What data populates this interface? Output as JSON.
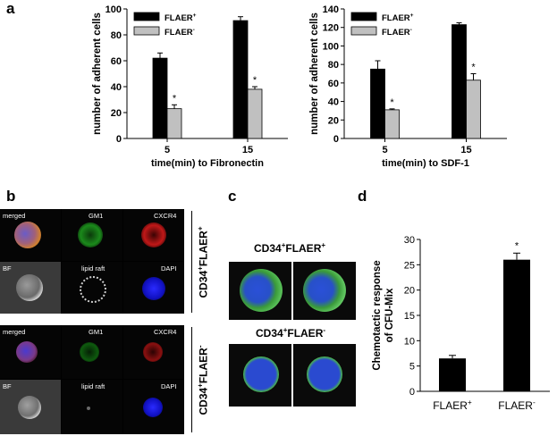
{
  "panels": {
    "a": "a",
    "b": "b",
    "c": "c",
    "d": "d"
  },
  "chart_data": [
    {
      "type": "bar",
      "categories": [
        "5",
        "15"
      ],
      "series": [
        {
          "name": "FLAER+",
          "values": [
            62,
            91
          ],
          "errors": [
            4,
            3
          ],
          "color": "#000000"
        },
        {
          "name": "FLAER-",
          "values": [
            23,
            38
          ],
          "errors": [
            3,
            2
          ],
          "color": "#c0c0c0"
        }
      ],
      "annotations": [
        "*",
        "*"
      ],
      "legend_labels": [
        "FLAER",
        "FLAER"
      ],
      "legend_sups": [
        "+",
        "-"
      ],
      "xlabel": "time(min) to Fibronectin",
      "ylabel": "number of adherent cells",
      "ylim": [
        0,
        100
      ],
      "yticks": [
        "0",
        "20",
        "40",
        "60",
        "80",
        "100"
      ],
      "legend": "top-left"
    },
    {
      "type": "bar",
      "categories": [
        "5",
        "15"
      ],
      "series": [
        {
          "name": "FLAER+",
          "values": [
            75,
            123
          ],
          "errors": [
            9,
            2
          ],
          "color": "#000000"
        },
        {
          "name": "FLAER-",
          "values": [
            31,
            63
          ],
          "errors": [
            1,
            7
          ],
          "color": "#c0c0c0"
        }
      ],
      "annotations": [
        "*",
        "*"
      ],
      "legend_labels": [
        "FLAER",
        "FLAER"
      ],
      "legend_sups": [
        "+",
        "-"
      ],
      "xlabel": "time(min) to SDF-1",
      "ylabel": "number of adherent cells",
      "ylim": [
        0,
        140
      ],
      "yticks": [
        "0",
        "20",
        "40",
        "60",
        "80",
        "100",
        "120",
        "140"
      ],
      "legend": "top-left"
    },
    {
      "type": "bar",
      "categories": [
        "FLAER",
        "FLAER"
      ],
      "category_sups": [
        "+",
        "-"
      ],
      "series": [
        {
          "name": "",
          "values": [
            6.5,
            26
          ],
          "errors": [
            0.6,
            1.3
          ],
          "color": "#000000"
        }
      ],
      "annotations": [
        "",
        "*"
      ],
      "ylabel_line1": "Chemotactic response",
      "ylabel_line2": "of CFU-Mix",
      "ylim": [
        0,
        30
      ],
      "yticks": [
        "0",
        "5",
        "10",
        "15",
        "20",
        "25",
        "30"
      ]
    }
  ],
  "microscopy_b": {
    "top": {
      "labels": [
        "merged",
        "GM1",
        "CXCR4",
        "BF",
        "lipid raft",
        "DAPI"
      ],
      "side_label": "CD34",
      "side_sup1": "+",
      "side_mid": "FLAER",
      "side_sup2": "+"
    },
    "bottom": {
      "labels": [
        "merged",
        "GM1",
        "CXCR4",
        "BF",
        "lipid raft",
        "DAPI"
      ],
      "side_label": "CD34",
      "side_sup1": "+",
      "side_mid": "FLAER",
      "side_sup2": "-"
    }
  },
  "microscopy_c": {
    "top_title": "CD34",
    "top_sup1": "+",
    "top_mid": "FLAER",
    "top_sup2": "+",
    "bottom_title": "CD34",
    "bottom_sup1": "+",
    "bottom_mid": "FLAER",
    "bottom_sup2": "-"
  }
}
